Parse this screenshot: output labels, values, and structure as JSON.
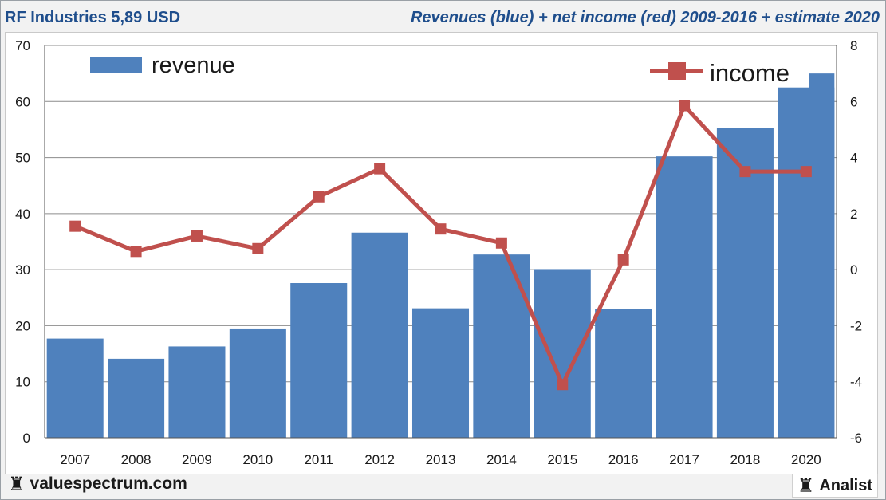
{
  "header": {
    "title": "RF Industries 5,89 USD",
    "subtitle": "Revenues (blue) + net income (red) 2009-2016 + estimate 2020"
  },
  "footer": {
    "site": "valuespectrum.com",
    "brand": "Analist",
    "icon": "rook-icon"
  },
  "colors": {
    "bar": "#4f81bd",
    "line": "#c0504d",
    "title": "#1f4e8c",
    "grid": "#8c8c8c"
  },
  "chart_data": {
    "type": "bar",
    "categories": [
      "2007",
      "2008",
      "2009",
      "2010",
      "2011",
      "2012",
      "2013",
      "2014",
      "2015",
      "2016",
      "2017",
      "2018",
      "2020"
    ],
    "series": [
      {
        "name": "revenue",
        "type": "bar",
        "axis": "left",
        "values": [
          17.7,
          14.1,
          16.3,
          19.5,
          27.6,
          36.6,
          23.1,
          32.7,
          30.1,
          23.0,
          50.2,
          55.3,
          62.5
        ]
      },
      {
        "name": "income",
        "type": "line",
        "axis": "right",
        "values": [
          1.55,
          0.65,
          1.2,
          0.75,
          2.6,
          3.6,
          1.45,
          0.95,
          -4.1,
          0.35,
          5.85,
          3.5,
          3.5
        ]
      }
    ],
    "extra_bar": {
      "category": "2020",
      "value": 65.0
    },
    "ylim_left": [
      0,
      70
    ],
    "ylim_right": [
      -6,
      8
    ],
    "yticks_left": [
      "0",
      "10",
      "20",
      "30",
      "40",
      "50",
      "60",
      "70"
    ],
    "yticks_right": [
      "-6",
      "-4",
      "-2",
      "0",
      "2",
      "4",
      "6",
      "8"
    ],
    "legend": [
      {
        "label": "revenue",
        "placement": "top-left"
      },
      {
        "label": "income",
        "placement": "top-right"
      }
    ],
    "grid": true
  }
}
